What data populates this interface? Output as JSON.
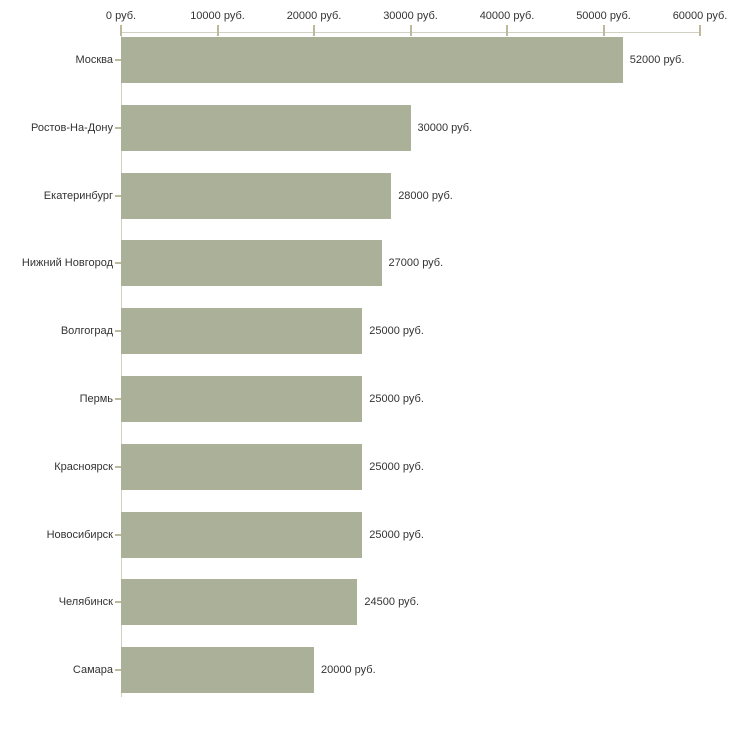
{
  "chart_data": {
    "type": "bar",
    "orientation": "horizontal",
    "title": "",
    "xlabel": "",
    "ylabel": "",
    "unit": "руб.",
    "categories": [
      "Москва",
      "Ростов-На-Дону",
      "Екатеринбург",
      "Нижний Новгород",
      "Волгоград",
      "Пермь",
      "Красноярск",
      "Новосибирск",
      "Челябинск",
      "Самара"
    ],
    "values": [
      52000,
      30000,
      28000,
      27000,
      25000,
      25000,
      25000,
      25000,
      24500,
      20000
    ],
    "value_labels": [
      "52000 руб.",
      "30000 руб.",
      "28000 руб.",
      "27000 руб.",
      "25000 руб.",
      "25000 руб.",
      "25000 руб.",
      "25000 руб.",
      "24500 руб.",
      "20000 руб."
    ],
    "x_tick_values": [
      0,
      10000,
      20000,
      30000,
      40000,
      50000,
      60000
    ],
    "x_tick_labels": [
      "0 руб.",
      "10000 руб.",
      "20000 руб.",
      "30000 руб.",
      "40000 руб.",
      "50000 руб.",
      "60000 руб."
    ],
    "xlim": [
      0,
      60000
    ],
    "grid": false,
    "legend": false,
    "colors": {
      "bar": "#abb198",
      "axis_line": "#d2d0c2",
      "tick_mark": "#bdb99b",
      "text": "#333333",
      "background": "#ffffff"
    }
  }
}
